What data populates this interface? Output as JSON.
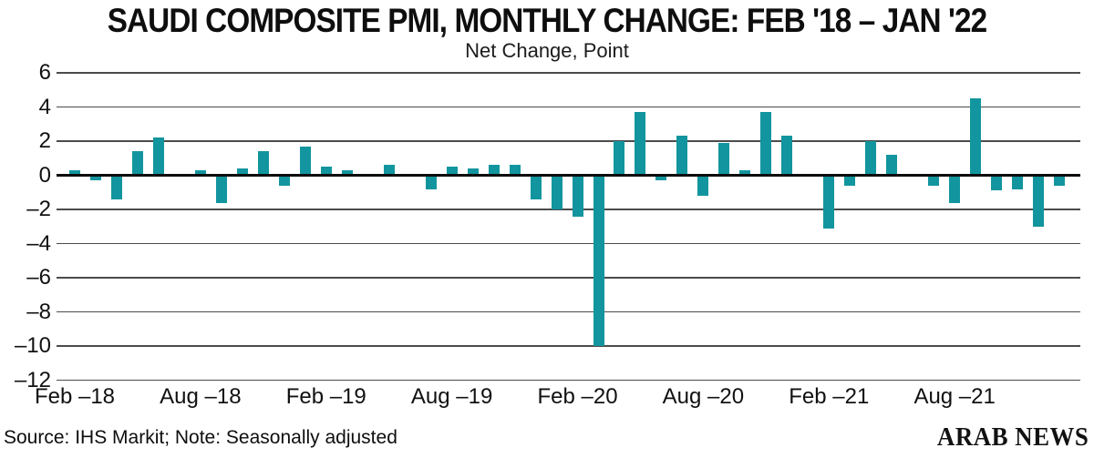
{
  "header": {
    "title": "SAUDI COMPOSITE PMI, MONTHLY CHANGE: FEB '18 – JAN '22",
    "subtitle": "Net Change, Point"
  },
  "chart_data": {
    "type": "bar",
    "title": "SAUDI COMPOSITE PMI, MONTHLY CHANGE: FEB '18 – JAN '22",
    "subtitle": "Net Change, Point",
    "ylabel": "Net Change, Point",
    "bar_color": "#12959E",
    "grid_color": "#4B4B4B",
    "zero_line_color": "#0D0D0D",
    "grid": true,
    "legend": "none",
    "ylim": [
      -12,
      6
    ],
    "yticks": [
      6,
      4,
      2,
      0,
      -2,
      -4,
      -6,
      -8,
      -10,
      -12
    ],
    "categories": [
      "Feb-18",
      "Mar-18",
      "Apr-18",
      "May-18",
      "Jun-18",
      "Jul-18",
      "Aug-18",
      "Sep-18",
      "Oct-18",
      "Nov-18",
      "Dec-18",
      "Jan-19",
      "Feb-19",
      "Mar-19",
      "Apr-19",
      "May-19",
      "Jun-19",
      "Jul-19",
      "Aug-19",
      "Sep-19",
      "Oct-19",
      "Nov-19",
      "Dec-19",
      "Jan-20",
      "Feb-20",
      "Mar-20",
      "Apr-20",
      "May-20",
      "Jun-20",
      "Jul-20",
      "Aug-20",
      "Sep-20",
      "Oct-20",
      "Nov-20",
      "Dec-20",
      "Jan-21",
      "Feb-21",
      "Mar-21",
      "Apr-21",
      "May-21",
      "Jun-21",
      "Jul-21",
      "Aug-21",
      "Sep-21",
      "Oct-21",
      "Nov-21",
      "Dec-21",
      "Jan-22"
    ],
    "values": [
      0.3,
      -0.3,
      -1.4,
      1.4,
      2.2,
      0.0,
      0.3,
      -1.6,
      0.4,
      1.4,
      -0.6,
      1.7,
      0.5,
      0.3,
      0.0,
      0.6,
      0.0,
      -0.8,
      0.5,
      0.4,
      0.6,
      0.6,
      -1.4,
      -2.0,
      -2.4,
      -10.0,
      2.0,
      3.7,
      -0.3,
      2.3,
      -1.2,
      1.9,
      0.3,
      3.7,
      2.3,
      0.0,
      -3.1,
      -0.6,
      2.0,
      1.2,
      0.0,
      -0.6,
      -1.6,
      4.5,
      -0.9,
      -0.8,
      -3.0,
      -0.6
    ],
    "xtick_positions": [
      0,
      6,
      12,
      18,
      24,
      30,
      36,
      42
    ],
    "xtick_labels": [
      "Feb –18",
      "Aug –18",
      "Feb –19",
      "Aug –19",
      "Feb –20",
      "Aug –20",
      "Feb –21",
      "Aug –21"
    ]
  },
  "footer": {
    "source": "Source: IHS Markit; Note: Seasonally adjusted",
    "brand": "ARAB NEWS"
  }
}
